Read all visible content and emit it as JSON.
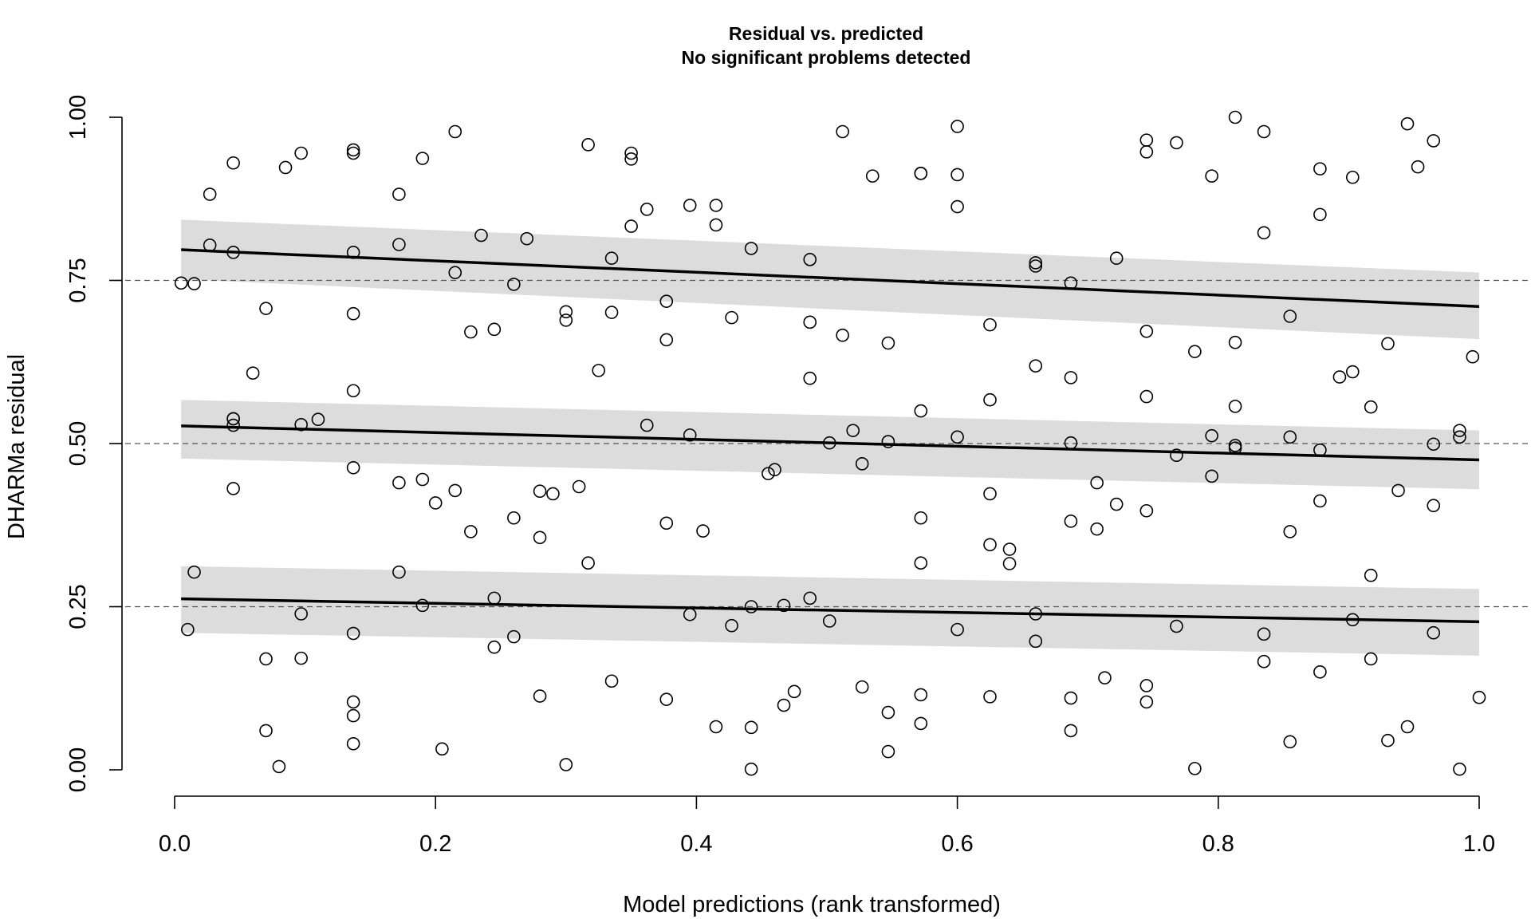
{
  "chart_data": {
    "type": "scatter",
    "title": "Residual vs. predicted",
    "subtitle": "No significant problems detected",
    "xlabel": "Model predictions (rank transformed)",
    "ylabel": "DHARMa residual",
    "xlim": [
      0.0,
      1.0
    ],
    "ylim": [
      0.0,
      1.0
    ],
    "x_ticks": [
      "0.0",
      "0.2",
      "0.4",
      "0.6",
      "0.8",
      "1.0"
    ],
    "y_ticks": [
      "0.00",
      "0.25",
      "0.50",
      "0.75",
      "1.00"
    ],
    "reference_lines": [
      0.25,
      0.5,
      0.75
    ],
    "quantile_fits": [
      {
        "quantile": 0.25,
        "x": [
          0.005,
          1.0
        ],
        "y": [
          0.262,
          0.227
        ],
        "band_low": [
          0.21,
          0.175
        ],
        "band_high": [
          0.312,
          0.277
        ]
      },
      {
        "quantile": 0.5,
        "x": [
          0.005,
          1.0
        ],
        "y": [
          0.527,
          0.475
        ],
        "band_low": [
          0.477,
          0.43
        ],
        "band_high": [
          0.567,
          0.52
        ]
      },
      {
        "quantile": 0.75,
        "x": [
          0.005,
          1.0
        ],
        "y": [
          0.797,
          0.71
        ],
        "band_low": [
          0.752,
          0.66
        ],
        "band_high": [
          0.843,
          0.762
        ]
      }
    ],
    "points": {
      "x": [
        0.005,
        0.01,
        0.015,
        0.015,
        0.027,
        0.027,
        0.045,
        0.045,
        0.045,
        0.045,
        0.045,
        0.045,
        0.06,
        0.07,
        0.07,
        0.07,
        0.08,
        0.085,
        0.097,
        0.097,
        0.097,
        0.097,
        0.11,
        0.137,
        0.137,
        0.137,
        0.137,
        0.137,
        0.137,
        0.137,
        0.137,
        0.137,
        0.137,
        0.172,
        0.172,
        0.172,
        0.172,
        0.19,
        0.19,
        0.19,
        0.2,
        0.205,
        0.215,
        0.215,
        0.215,
        0.227,
        0.227,
        0.235,
        0.245,
        0.245,
        0.245,
        0.26,
        0.26,
        0.26,
        0.27,
        0.28,
        0.28,
        0.28,
        0.29,
        0.3,
        0.3,
        0.3,
        0.31,
        0.317,
        0.317,
        0.325,
        0.335,
        0.335,
        0.335,
        0.35,
        0.35,
        0.35,
        0.362,
        0.362,
        0.377,
        0.377,
        0.377,
        0.377,
        0.395,
        0.395,
        0.395,
        0.405,
        0.415,
        0.415,
        0.415,
        0.427,
        0.427,
        0.442,
        0.442,
        0.442,
        0.442,
        0.455,
        0.46,
        0.467,
        0.467,
        0.475,
        0.487,
        0.487,
        0.487,
        0.487,
        0.502,
        0.502,
        0.512,
        0.512,
        0.52,
        0.527,
        0.527,
        0.535,
        0.547,
        0.547,
        0.547,
        0.547,
        0.572,
        0.572,
        0.572,
        0.572,
        0.572,
        0.572,
        0.572,
        0.6,
        0.6,
        0.6,
        0.6,
        0.6,
        0.625,
        0.625,
        0.625,
        0.625,
        0.625,
        0.64,
        0.64,
        0.66,
        0.66,
        0.66,
        0.66,
        0.66,
        0.687,
        0.687,
        0.687,
        0.687,
        0.687,
        0.687,
        0.707,
        0.707,
        0.713,
        0.722,
        0.722,
        0.745,
        0.745,
        0.745,
        0.745,
        0.745,
        0.745,
        0.745,
        0.768,
        0.768,
        0.768,
        0.782,
        0.782,
        0.795,
        0.795,
        0.795,
        0.813,
        0.813,
        0.813,
        0.813,
        0.813,
        0.835,
        0.835,
        0.835,
        0.835,
        0.855,
        0.855,
        0.855,
        0.855,
        0.878,
        0.878,
        0.878,
        0.878,
        0.878,
        0.893,
        0.903,
        0.903,
        0.903,
        0.917,
        0.917,
        0.917,
        0.93,
        0.93,
        0.938,
        0.945,
        0.945,
        0.953,
        0.965,
        0.965,
        0.965,
        0.965,
        0.985,
        0.985,
        0.985,
        0.995,
        1.0
      ],
      "y": [
        0.746,
        0.215,
        0.745,
        0.303,
        0.882,
        0.804,
        0.93,
        0.793,
        0.538,
        0.528,
        0.431,
        0.538,
        0.608,
        0.707,
        0.17,
        0.06,
        0.005,
        0.923,
        0.945,
        0.529,
        0.239,
        0.171,
        0.537,
        0.95,
        0.945,
        0.793,
        0.699,
        0.581,
        0.463,
        0.209,
        0.104,
        0.083,
        0.04,
        0.882,
        0.805,
        0.44,
        0.303,
        0.937,
        0.445,
        0.252,
        0.409,
        0.032,
        0.978,
        0.762,
        0.428,
        0.671,
        0.365,
        0.819,
        0.675,
        0.263,
        0.188,
        0.744,
        0.386,
        0.204,
        0.814,
        0.427,
        0.356,
        0.113,
        0.423,
        0.702,
        0.689,
        0.008,
        0.434,
        0.958,
        0.317,
        0.612,
        0.784,
        0.701,
        0.136,
        0.945,
        0.936,
        0.833,
        0.859,
        0.528,
        0.718,
        0.659,
        0.378,
        0.108,
        0.865,
        0.513,
        0.238,
        0.366,
        0.865,
        0.835,
        0.066,
        0.693,
        0.221,
        0.799,
        0.25,
        0.065,
        0.001,
        0.454,
        0.46,
        0.252,
        0.099,
        0.12,
        0.782,
        0.686,
        0.6,
        0.263,
        0.501,
        0.228,
        0.978,
        0.666,
        0.52,
        0.469,
        0.127,
        0.91,
        0.654,
        0.503,
        0.088,
        0.028,
        0.914,
        0.55,
        0.386,
        0.317,
        0.115,
        0.071,
        0.914,
        0.986,
        0.912,
        0.863,
        0.51,
        0.215,
        0.682,
        0.567,
        0.423,
        0.345,
        0.112,
        0.338,
        0.316,
        0.777,
        0.772,
        0.619,
        0.239,
        0.197,
        0.746,
        0.601,
        0.501,
        0.381,
        0.11,
        0.06,
        0.44,
        0.369,
        0.141,
        0.784,
        0.407,
        0.965,
        0.947,
        0.672,
        0.572,
        0.397,
        0.129,
        0.104,
        0.961,
        0.482,
        0.22,
        0.641,
        0.002,
        0.91,
        0.512,
        0.45,
        1.0,
        0.655,
        0.557,
        0.497,
        0.493,
        0.978,
        0.823,
        0.208,
        0.166,
        0.695,
        0.51,
        0.365,
        0.043,
        0.921,
        0.851,
        0.49,
        0.412,
        0.15,
        0.602,
        0.908,
        0.61,
        0.23,
        0.556,
        0.298,
        0.17,
        0.653,
        0.045,
        0.428,
        0.99,
        0.066,
        0.924,
        0.964,
        0.499,
        0.405,
        0.21,
        0.52,
        0.51,
        0.001,
        0.633,
        0.111
      ]
    }
  }
}
